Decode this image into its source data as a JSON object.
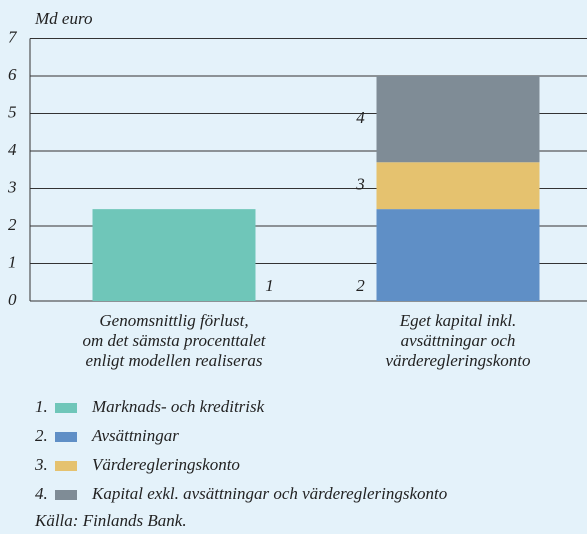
{
  "chart_data": {
    "type": "stacked_bar",
    "y_label": "Md euro",
    "categories": [
      "Genomsnittlig förlust,\nom det sämsta procenttalet\nenligt modellen realiseras",
      "Eget kapital inkl.\navsättningar och\nvärderegleringskonto"
    ],
    "series": [
      {
        "name": "Marknads- och kreditrisk",
        "label": "1",
        "legend_number": "1.",
        "color": "#6fc6b9",
        "values": [
          2.45,
          null
        ]
      },
      {
        "name": "Avsättningar",
        "label": "2",
        "legend_number": "2.",
        "color": "#5f8fc6",
        "values": [
          null,
          2.45
        ]
      },
      {
        "name": "Värderegleringskonto",
        "label": "3",
        "legend_number": "3.",
        "color": "#e5c26f",
        "values": [
          null,
          1.25
        ]
      },
      {
        "name": "Kapital exkl. avsättningar och värderegleringskonto",
        "label": "4",
        "legend_number": "4.",
        "color": "#7f8c96",
        "values": [
          null,
          2.3
        ]
      }
    ],
    "ylim": [
      0,
      7
    ],
    "yticks": [
      0,
      1,
      2,
      3,
      4,
      5,
      6,
      7
    ],
    "grid": true,
    "source": "Källa: Finlands Bank."
  }
}
